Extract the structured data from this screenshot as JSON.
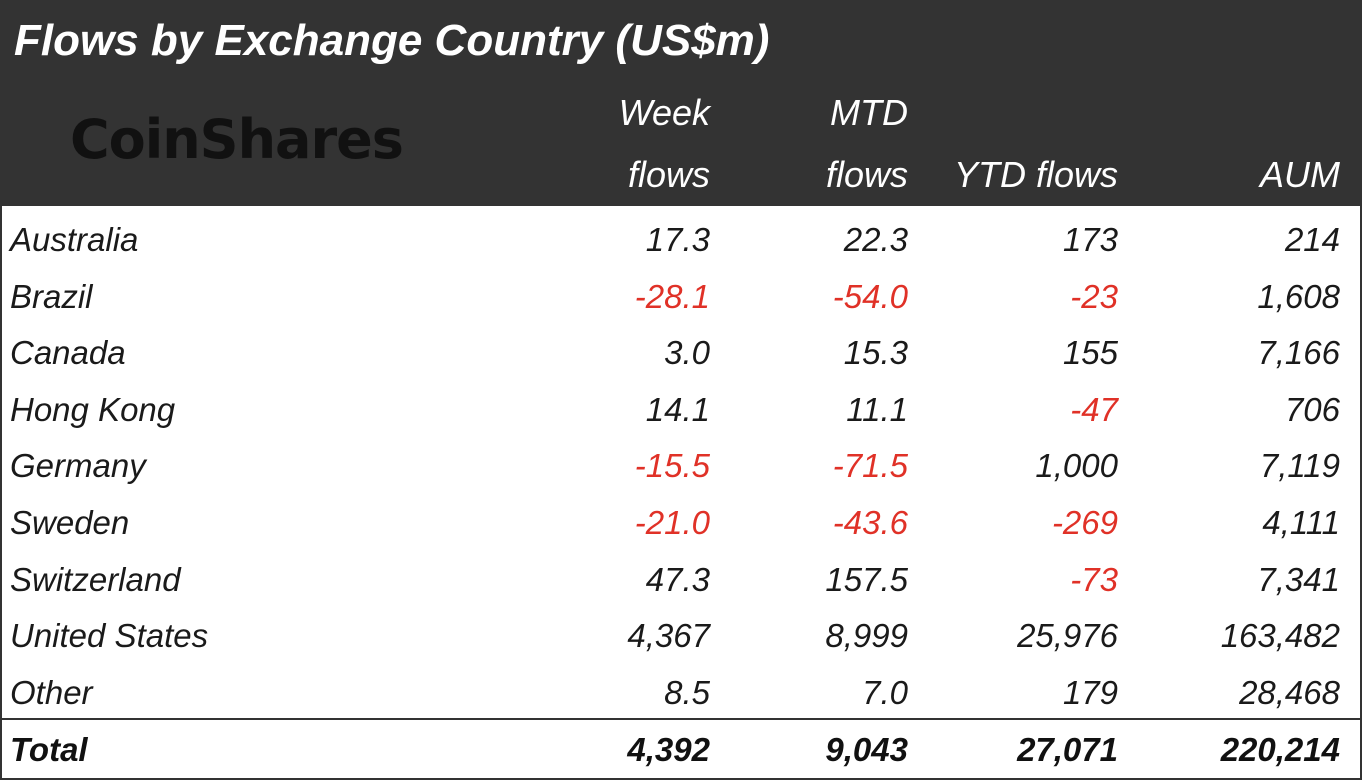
{
  "title": "Flows by Exchange Country (US$m)",
  "logo_text": "CoinShares",
  "colors": {
    "header_bg": "#333333",
    "negative": "#e03127",
    "text": "#1a1a1a"
  },
  "chart_data": {
    "type": "table",
    "title": "Flows by Exchange Country (US$m)",
    "columns": [
      {
        "key": "week",
        "line1": "Week",
        "line2": "flows"
      },
      {
        "key": "mtd",
        "line1": "MTD",
        "line2": "flows"
      },
      {
        "key": "ytd",
        "line1": "",
        "line2": "YTD flows"
      },
      {
        "key": "aum",
        "line1": "",
        "line2": "AUM"
      }
    ],
    "rows": [
      {
        "country": "Australia",
        "week": "17.3",
        "mtd": "22.3",
        "ytd": "173",
        "aum": "214"
      },
      {
        "country": "Brazil",
        "week": "-28.1",
        "mtd": "-54.0",
        "ytd": "-23",
        "aum": "1,608"
      },
      {
        "country": "Canada",
        "week": "3.0",
        "mtd": "15.3",
        "ytd": "155",
        "aum": "7,166"
      },
      {
        "country": "Hong Kong",
        "week": "14.1",
        "mtd": "11.1",
        "ytd": "-47",
        "aum": "706"
      },
      {
        "country": "Germany",
        "week": "-15.5",
        "mtd": "-71.5",
        "ytd": "1,000",
        "aum": "7,119"
      },
      {
        "country": "Sweden",
        "week": "-21.0",
        "mtd": "-43.6",
        "ytd": "-269",
        "aum": "4,111"
      },
      {
        "country": "Switzerland",
        "week": "47.3",
        "mtd": "157.5",
        "ytd": "-73",
        "aum": "7,341"
      },
      {
        "country": "United States",
        "week": "4,367",
        "mtd": "8,999",
        "ytd": "25,976",
        "aum": "163,482"
      },
      {
        "country": "Other",
        "week": "8.5",
        "mtd": "7.0",
        "ytd": "179",
        "aum": "28,468"
      }
    ],
    "total": {
      "country": "Total",
      "week": "4,392",
      "mtd": "9,043",
      "ytd": "27,071",
      "aum": "220,214"
    }
  }
}
